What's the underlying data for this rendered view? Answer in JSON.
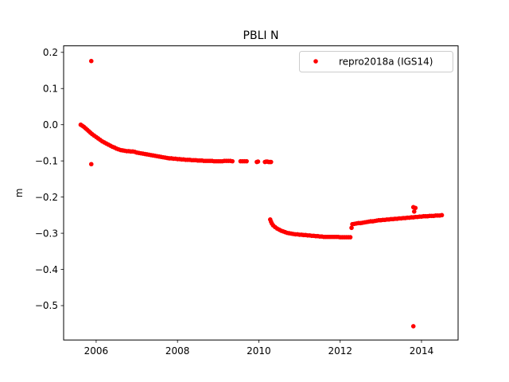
{
  "chart_data": {
    "type": "scatter",
    "title": "PBLI N",
    "xlabel": "",
    "ylabel": "m",
    "xlim": [
      2005.2,
      2014.9
    ],
    "ylim": [
      -0.595,
      0.218
    ],
    "xticks": [
      2006,
      2008,
      2010,
      2012,
      2014
    ],
    "xtick_labels": [
      "2006",
      "2008",
      "2010",
      "2012",
      "2014"
    ],
    "yticks": [
      0.2,
      0.1,
      0.0,
      -0.1,
      -0.2,
      -0.3,
      -0.4,
      -0.5
    ],
    "ytick_labels": [
      "0.2",
      "0.1",
      "0.0",
      "−0.1",
      "−0.2",
      "−0.3",
      "−0.4",
      "−0.5"
    ],
    "grid": false,
    "legend_position": "top-right",
    "series": [
      {
        "name": "repro2018a (IGS14)",
        "color": "#ff0000",
        "marker": "circle",
        "points": [
          [
            2005.62,
            0.0
          ],
          [
            2005.66,
            -0.003
          ],
          [
            2005.7,
            -0.006
          ],
          [
            2005.74,
            -0.01
          ],
          [
            2005.78,
            -0.014
          ],
          [
            2005.82,
            -0.018
          ],
          [
            2005.86,
            -0.022
          ],
          [
            2005.9,
            -0.026
          ],
          [
            2005.95,
            -0.03
          ],
          [
            2006.0,
            -0.034
          ],
          [
            2006.05,
            -0.038
          ],
          [
            2006.1,
            -0.042
          ],
          [
            2006.15,
            -0.046
          ],
          [
            2006.2,
            -0.049
          ],
          [
            2006.25,
            -0.052
          ],
          [
            2006.3,
            -0.055
          ],
          [
            2006.35,
            -0.058
          ],
          [
            2006.4,
            -0.061
          ],
          [
            2006.45,
            -0.063
          ],
          [
            2006.5,
            -0.066
          ],
          [
            2006.55,
            -0.068
          ],
          [
            2006.6,
            -0.07
          ],
          [
            2006.65,
            -0.071
          ],
          [
            2006.7,
            -0.072
          ],
          [
            2006.75,
            -0.073
          ],
          [
            2006.8,
            -0.073
          ],
          [
            2006.85,
            -0.074
          ],
          [
            2006.9,
            -0.074
          ],
          [
            2006.95,
            -0.075
          ],
          [
            2007.0,
            -0.077
          ],
          [
            2007.05,
            -0.078
          ],
          [
            2007.1,
            -0.079
          ],
          [
            2007.15,
            -0.08
          ],
          [
            2007.2,
            -0.081
          ],
          [
            2007.25,
            -0.082
          ],
          [
            2007.3,
            -0.083
          ],
          [
            2007.35,
            -0.084
          ],
          [
            2007.4,
            -0.085
          ],
          [
            2007.45,
            -0.086
          ],
          [
            2007.5,
            -0.087
          ],
          [
            2007.55,
            -0.088
          ],
          [
            2007.6,
            -0.089
          ],
          [
            2007.65,
            -0.09
          ],
          [
            2007.7,
            -0.091
          ],
          [
            2007.75,
            -0.092
          ],
          [
            2007.8,
            -0.093
          ],
          [
            2007.85,
            -0.093
          ],
          [
            2007.9,
            -0.094
          ],
          [
            2007.95,
            -0.094
          ],
          [
            2008.0,
            -0.095
          ],
          [
            2008.05,
            -0.095
          ],
          [
            2008.1,
            -0.096
          ],
          [
            2008.15,
            -0.096
          ],
          [
            2008.2,
            -0.097
          ],
          [
            2008.25,
            -0.097
          ],
          [
            2008.3,
            -0.097
          ],
          [
            2008.35,
            -0.098
          ],
          [
            2008.4,
            -0.098
          ],
          [
            2008.45,
            -0.098
          ],
          [
            2008.5,
            -0.099
          ],
          [
            2008.55,
            -0.099
          ],
          [
            2008.6,
            -0.099
          ],
          [
            2008.65,
            -0.1
          ],
          [
            2008.7,
            -0.1
          ],
          [
            2008.75,
            -0.1
          ],
          [
            2008.8,
            -0.1
          ],
          [
            2008.85,
            -0.1
          ],
          [
            2008.9,
            -0.101
          ],
          [
            2008.95,
            -0.101
          ],
          [
            2009.0,
            -0.101
          ],
          [
            2009.05,
            -0.101
          ],
          [
            2009.1,
            -0.101
          ],
          [
            2009.15,
            -0.1
          ],
          [
            2009.2,
            -0.1
          ],
          [
            2009.25,
            -0.1
          ],
          [
            2009.3,
            -0.1
          ],
          [
            2009.35,
            -0.101
          ],
          [
            2009.55,
            -0.101
          ],
          [
            2009.6,
            -0.101
          ],
          [
            2009.65,
            -0.101
          ],
          [
            2009.7,
            -0.101
          ],
          [
            2009.95,
            -0.103
          ],
          [
            2009.98,
            -0.102
          ],
          [
            2010.15,
            -0.103
          ],
          [
            2010.18,
            -0.102
          ],
          [
            2010.21,
            -0.102
          ],
          [
            2010.24,
            -0.103
          ],
          [
            2010.27,
            -0.103
          ],
          [
            2010.3,
            -0.103
          ],
          [
            2010.28,
            -0.262
          ],
          [
            2010.3,
            -0.268
          ],
          [
            2010.32,
            -0.273
          ],
          [
            2010.35,
            -0.278
          ],
          [
            2010.4,
            -0.283
          ],
          [
            2010.45,
            -0.287
          ],
          [
            2010.5,
            -0.29
          ],
          [
            2010.55,
            -0.293
          ],
          [
            2010.6,
            -0.295
          ],
          [
            2010.65,
            -0.297
          ],
          [
            2010.7,
            -0.299
          ],
          [
            2010.75,
            -0.3
          ],
          [
            2010.8,
            -0.301
          ],
          [
            2010.85,
            -0.302
          ],
          [
            2010.9,
            -0.303
          ],
          [
            2010.95,
            -0.303
          ],
          [
            2011.0,
            -0.304
          ],
          [
            2011.05,
            -0.304
          ],
          [
            2011.1,
            -0.305
          ],
          [
            2011.15,
            -0.305
          ],
          [
            2011.2,
            -0.306
          ],
          [
            2011.25,
            -0.306
          ],
          [
            2011.3,
            -0.307
          ],
          [
            2011.35,
            -0.307
          ],
          [
            2011.4,
            -0.308
          ],
          [
            2011.45,
            -0.308
          ],
          [
            2011.5,
            -0.309
          ],
          [
            2011.55,
            -0.309
          ],
          [
            2011.6,
            -0.31
          ],
          [
            2011.65,
            -0.31
          ],
          [
            2011.7,
            -0.31
          ],
          [
            2011.75,
            -0.31
          ],
          [
            2011.8,
            -0.31
          ],
          [
            2011.85,
            -0.31
          ],
          [
            2011.9,
            -0.31
          ],
          [
            2011.95,
            -0.31
          ],
          [
            2012.0,
            -0.311
          ],
          [
            2012.05,
            -0.311
          ],
          [
            2012.1,
            -0.311
          ],
          [
            2012.15,
            -0.311
          ],
          [
            2012.2,
            -0.311
          ],
          [
            2012.25,
            -0.311
          ],
          [
            2012.28,
            -0.285
          ],
          [
            2012.3,
            -0.275
          ],
          [
            2012.35,
            -0.274
          ],
          [
            2012.4,
            -0.273
          ],
          [
            2012.45,
            -0.272
          ],
          [
            2012.5,
            -0.272
          ],
          [
            2012.55,
            -0.271
          ],
          [
            2012.6,
            -0.27
          ],
          [
            2012.65,
            -0.269
          ],
          [
            2012.7,
            -0.268
          ],
          [
            2012.75,
            -0.267
          ],
          [
            2012.8,
            -0.267
          ],
          [
            2012.85,
            -0.266
          ],
          [
            2012.9,
            -0.265
          ],
          [
            2012.95,
            -0.264
          ],
          [
            2013.0,
            -0.264
          ],
          [
            2013.05,
            -0.263
          ],
          [
            2013.1,
            -0.263
          ],
          [
            2013.15,
            -0.262
          ],
          [
            2013.2,
            -0.262
          ],
          [
            2013.25,
            -0.261
          ],
          [
            2013.3,
            -0.261
          ],
          [
            2013.35,
            -0.26
          ],
          [
            2013.4,
            -0.26
          ],
          [
            2013.45,
            -0.259
          ],
          [
            2013.5,
            -0.259
          ],
          [
            2013.55,
            -0.258
          ],
          [
            2013.6,
            -0.258
          ],
          [
            2013.65,
            -0.257
          ],
          [
            2013.7,
            -0.257
          ],
          [
            2013.75,
            -0.256
          ],
          [
            2013.8,
            -0.256
          ],
          [
            2013.85,
            -0.255
          ],
          [
            2013.9,
            -0.255
          ],
          [
            2013.95,
            -0.254
          ],
          [
            2014.0,
            -0.254
          ],
          [
            2014.05,
            -0.253
          ],
          [
            2014.1,
            -0.253
          ],
          [
            2014.15,
            -0.253
          ],
          [
            2014.2,
            -0.252
          ],
          [
            2014.25,
            -0.252
          ],
          [
            2014.3,
            -0.252
          ],
          [
            2014.35,
            -0.251
          ],
          [
            2014.4,
            -0.251
          ],
          [
            2014.45,
            -0.251
          ],
          [
            2014.5,
            -0.25
          ],
          [
            2013.8,
            -0.228
          ],
          [
            2013.85,
            -0.23
          ],
          [
            2013.82,
            -0.24
          ],
          [
            2005.88,
            0.176
          ],
          [
            2005.88,
            -0.109
          ],
          [
            2013.8,
            -0.557
          ]
        ]
      }
    ]
  }
}
